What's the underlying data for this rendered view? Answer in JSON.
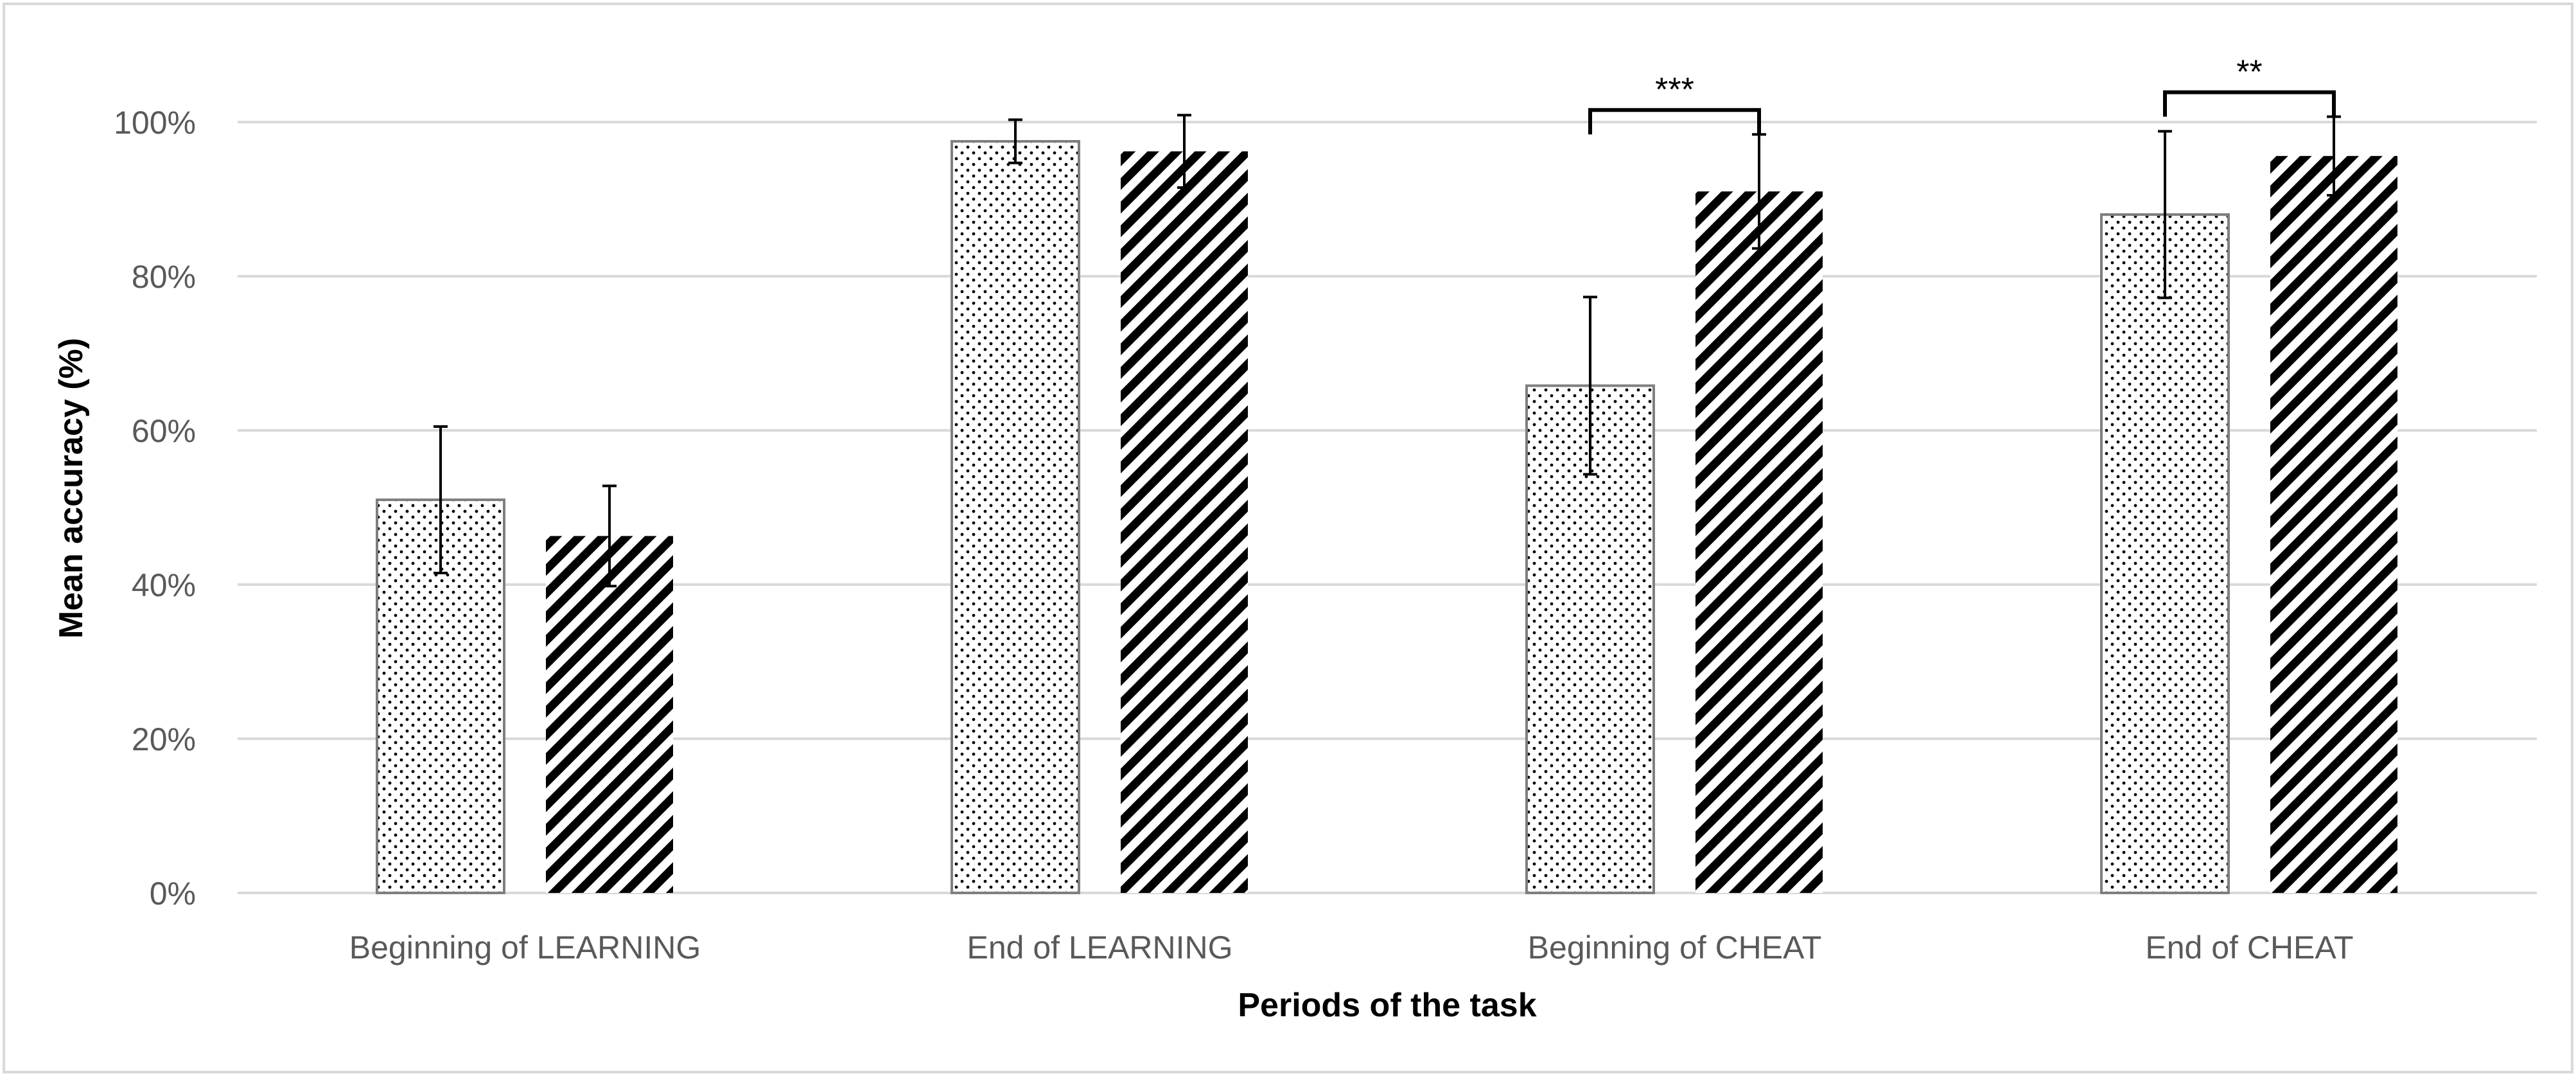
{
  "chart_data": {
    "type": "bar",
    "title": "",
    "xlabel": "Periods of the task",
    "ylabel": "Mean accuracy (%)",
    "ylim": [
      0,
      100
    ],
    "y_ticks": [
      0,
      20,
      40,
      60,
      80,
      100
    ],
    "y_tick_format": "percent",
    "grid": true,
    "legend": "none",
    "categories": [
      "Beginning of LEARNING",
      "End of LEARNING",
      "Beginning of CHEAT",
      "End of CHEAT"
    ],
    "series": [
      {
        "pattern": "dotted",
        "values": [
          51,
          97.5,
          65.8,
          88
        ],
        "error": [
          9.5,
          2.8,
          11.5,
          10.8
        ]
      },
      {
        "pattern": "diagonal-hatch",
        "values": [
          46.3,
          96.2,
          91,
          95.6
        ],
        "error": [
          6.5,
          4.7,
          7.4,
          5.1
        ]
      }
    ],
    "annotations": [
      {
        "category": "Beginning of CHEAT",
        "text": "***"
      },
      {
        "category": "End of CHEAT",
        "text": "**"
      }
    ],
    "colors": {
      "grid": "#d9d9d9",
      "bar_outline": "#7f7f7f",
      "hatch": "#000000",
      "dots": "#000000",
      "tick_text": "#595959",
      "axis_title": "#000000",
      "frame": "#d9d9d9"
    }
  }
}
